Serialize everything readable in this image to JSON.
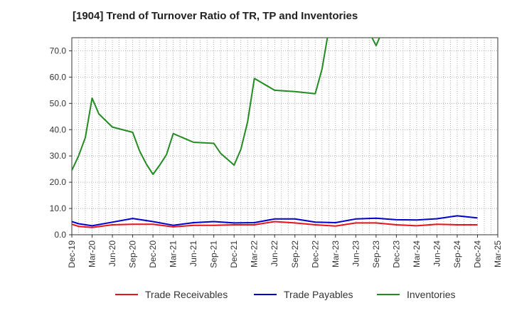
{
  "chart_data": {
    "type": "line",
    "title": "[1904]  Trend of Turnover Ratio of TR, TP and Inventories",
    "xlabel": "",
    "ylabel": "",
    "ylim": [
      0,
      75
    ],
    "yticks": [
      0,
      10,
      20,
      30,
      40,
      50,
      60,
      70
    ],
    "ytick_labels": [
      "0.0",
      "10.0",
      "20.0",
      "30.0",
      "40.0",
      "50.0",
      "60.0",
      "70.0"
    ],
    "x_ticks": [
      "Dec-19",
      "Mar-20",
      "Jun-20",
      "Sep-20",
      "Dec-20",
      "Mar-21",
      "Jun-21",
      "Sep-21",
      "Dec-21",
      "Mar-22",
      "Jun-22",
      "Sep-22",
      "Dec-22",
      "Mar-23",
      "Jun-23",
      "Sep-23",
      "Dec-23",
      "Mar-24",
      "Jun-24",
      "Sep-24",
      "Dec-24",
      "Mar-25"
    ],
    "grid": true,
    "legend_position": "bottom",
    "series": [
      {
        "name": "Trade Receivables",
        "color": "#e8131b",
        "points": [
          [
            0,
            4.0
          ],
          [
            1,
            3.2
          ],
          [
            3,
            2.8
          ],
          [
            6,
            3.8
          ],
          [
            9,
            4.0
          ],
          [
            12,
            4.0
          ],
          [
            15,
            3.0
          ],
          [
            18,
            3.6
          ],
          [
            21,
            3.6
          ],
          [
            24,
            3.8
          ],
          [
            27,
            3.8
          ],
          [
            30,
            5.0
          ],
          [
            33,
            4.5
          ],
          [
            36,
            3.8
          ],
          [
            39,
            3.3
          ],
          [
            42,
            4.5
          ],
          [
            45,
            4.5
          ],
          [
            48,
            3.8
          ],
          [
            51,
            3.4
          ],
          [
            54,
            4.0
          ],
          [
            57,
            3.8
          ],
          [
            60,
            3.8
          ]
        ]
      },
      {
        "name": "Trade Payables",
        "color": "#0000cc",
        "points": [
          [
            0,
            5.0
          ],
          [
            1,
            4.2
          ],
          [
            3,
            3.4
          ],
          [
            6,
            4.8
          ],
          [
            9,
            6.2
          ],
          [
            12,
            5.0
          ],
          [
            15,
            3.6
          ],
          [
            18,
            4.6
          ],
          [
            21,
            5.0
          ],
          [
            24,
            4.5
          ],
          [
            27,
            4.6
          ],
          [
            30,
            6.0
          ],
          [
            33,
            6.0
          ],
          [
            36,
            4.8
          ],
          [
            39,
            4.6
          ],
          [
            42,
            6.0
          ],
          [
            45,
            6.3
          ],
          [
            48,
            5.7
          ],
          [
            51,
            5.6
          ],
          [
            54,
            6.1
          ],
          [
            57,
            7.2
          ],
          [
            60,
            6.4
          ]
        ]
      },
      {
        "name": "Inventories",
        "color": "#228b22",
        "points": [
          [
            0,
            24.5
          ],
          [
            1,
            30.0
          ],
          [
            2,
            37.0
          ],
          [
            3,
            52.0
          ],
          [
            4,
            46.0
          ],
          [
            6,
            41.0
          ],
          [
            9,
            39.0
          ],
          [
            10,
            32.0
          ],
          [
            11,
            27.0
          ],
          [
            12,
            23.0
          ],
          [
            13,
            26.5
          ],
          [
            14,
            30.5
          ],
          [
            15,
            38.5
          ],
          [
            18,
            35.2
          ],
          [
            21,
            34.8
          ],
          [
            22,
            31.0
          ],
          [
            24,
            26.5
          ],
          [
            25,
            32.5
          ],
          [
            26,
            43.0
          ],
          [
            27,
            59.5
          ],
          [
            30,
            55.0
          ],
          [
            33,
            54.5
          ],
          [
            36,
            53.7
          ],
          [
            37,
            63.0
          ],
          [
            38,
            78.0
          ],
          [
            44,
            77.0
          ],
          [
            45,
            72.0
          ],
          [
            46,
            78.0
          ]
        ]
      }
    ]
  }
}
